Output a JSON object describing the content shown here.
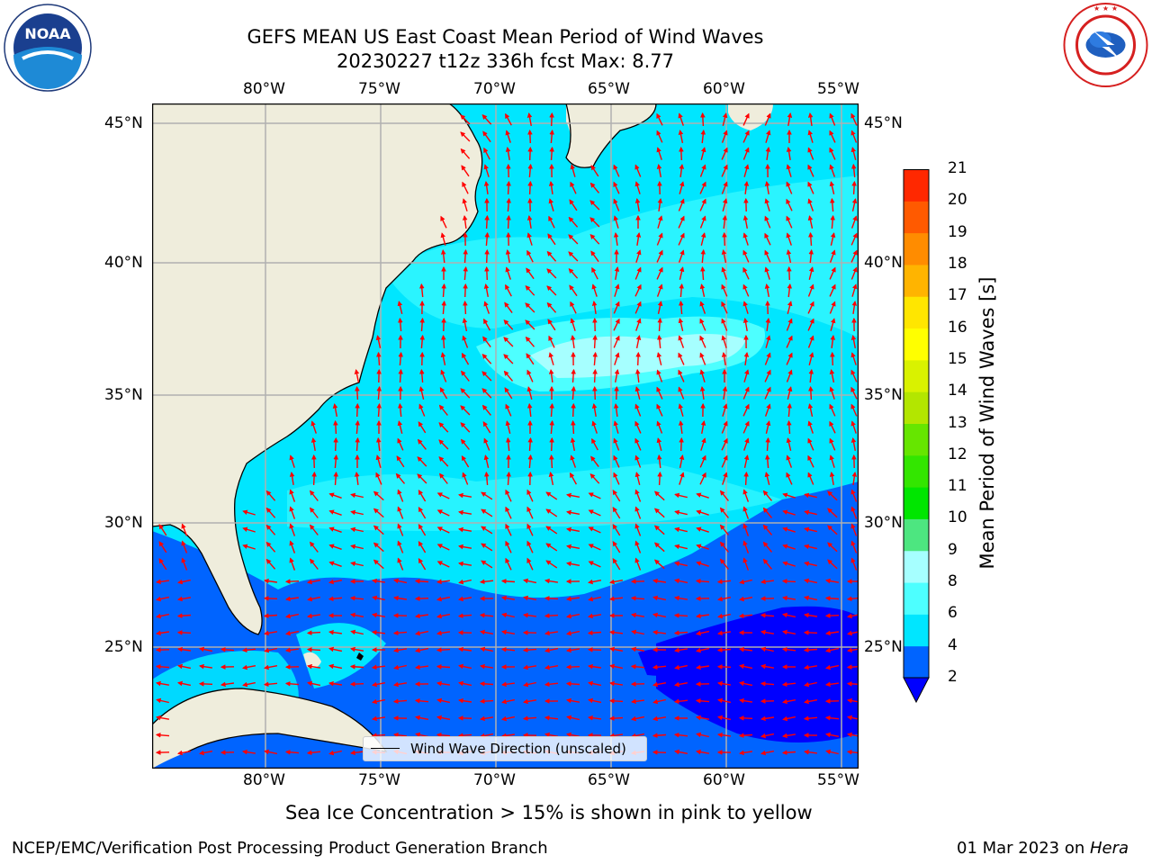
{
  "header": {
    "title_line1": "GEFS MEAN US East Coast Mean Period of Wind Waves",
    "title_line2": "20230227 t12z 336h fcst   Max: 8.77"
  },
  "logos": {
    "noaa": {
      "text": "NOAA",
      "ring_text": "NATIONAL OCEANIC AND ATMOSPHERIC ADMINISTRATION · U.S. DEPARTMENT OF COMMERCE"
    },
    "nws": {
      "ring_text": "NATIONAL WEATHER SERVICE"
    }
  },
  "map": {
    "lon_labels": [
      "80°W",
      "75°W",
      "70°W",
      "65°W",
      "60°W",
      "55°W"
    ],
    "lat_labels": [
      "45°N",
      "40°N",
      "35°N",
      "30°N",
      "25°N"
    ],
    "legend_label": "Wind Wave Direction (unscaled)",
    "arrow_color": "#ff0000",
    "land_color": "#efeddc",
    "grid_color": "#b0b0b0"
  },
  "colorbar": {
    "label": "Mean Period of Wind Waves [s]",
    "ticks": [
      "2",
      "4",
      "6",
      "8",
      "9",
      "10",
      "11",
      "12",
      "13",
      "14",
      "15",
      "16",
      "17",
      "18",
      "19",
      "20",
      "21"
    ],
    "colors": [
      "#0064ff",
      "#00e6ff",
      "#4dffff",
      "#a6ffff",
      "#4de680",
      "#00e600",
      "#33e600",
      "#66e600",
      "#b3e600",
      "#d9f200",
      "#ffff00",
      "#ffe600",
      "#ffb400",
      "#ff8c00",
      "#ff5a00",
      "#ff2800",
      "#ff0000"
    ],
    "under_color": "#0000ff"
  },
  "captions": {
    "sea_ice": "Sea Ice Concentration > 15% is shown in pink to yellow",
    "producer": "NCEP/EMC/Verification Post Processing Product Generation Branch",
    "date": "01 Mar 2023 on ",
    "host": "Hera"
  }
}
